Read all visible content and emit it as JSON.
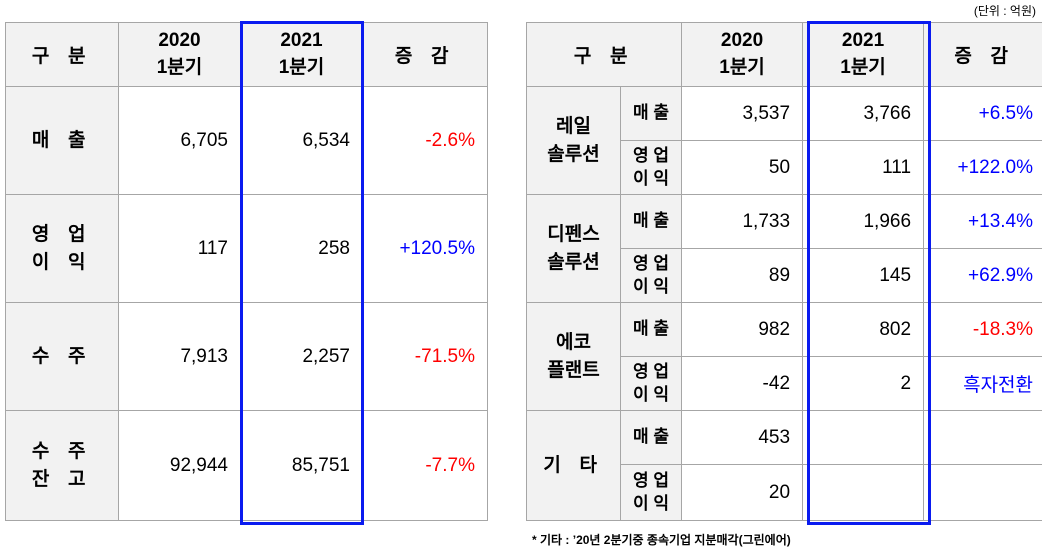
{
  "unit_label": "(단위 : 억원)",
  "left_table": {
    "headers": {
      "category": "구 분",
      "y2020_line1": "2020",
      "y2020_line2": "1분기",
      "y2021_line1": "2021",
      "y2021_line2": "1분기",
      "change": "증 감"
    },
    "rows": [
      {
        "label_line1": "매 출",
        "label_line2": "",
        "v2020": "6,705",
        "v2021": "6,534",
        "change": "-2.6%"
      },
      {
        "label_line1": "영 업",
        "label_line2": "이 익",
        "v2020": "117",
        "v2021": "258",
        "change": "+120.5%"
      },
      {
        "label_line1": "수 주",
        "label_line2": "",
        "v2020": "7,913",
        "v2021": "2,257",
        "change": "-71.5%"
      },
      {
        "label_line1": "수 주",
        "label_line2": "잔 고",
        "v2020": "92,944",
        "v2021": "85,751",
        "change": "-7.7%"
      }
    ]
  },
  "right_table": {
    "headers": {
      "category": "구 분",
      "y2020_line1": "2020",
      "y2020_line2": "1분기",
      "y2021_line1": "2021",
      "y2021_line2": "1분기",
      "change": "증 감"
    },
    "groups": [
      {
        "name_line1": "레일",
        "name_line2": "솔루션",
        "sales": {
          "label": "매 출",
          "v2020": "3,537",
          "v2021": "3,766",
          "change": "+6.5%"
        },
        "op": {
          "label_line1": "영 업",
          "label_line2": "이 익",
          "v2020": "50",
          "v2021": "111",
          "change": "+122.0%"
        }
      },
      {
        "name_line1": "디펜스",
        "name_line2": "솔루션",
        "sales": {
          "label": "매 출",
          "v2020": "1,733",
          "v2021": "1,966",
          "change": "+13.4%"
        },
        "op": {
          "label_line1": "영 업",
          "label_line2": "이 익",
          "v2020": "89",
          "v2021": "145",
          "change": "+62.9%"
        }
      },
      {
        "name_line1": "에코",
        "name_line2": "플랜트",
        "sales": {
          "label": "매 출",
          "v2020": "982",
          "v2021": "802",
          "change": "-18.3%"
        },
        "op": {
          "label_line1": "영 업",
          "label_line2": "이 익",
          "v2020": "-42",
          "v2021": "2",
          "change": "흑자전환"
        }
      },
      {
        "name_line1": "기 타",
        "name_line2": "",
        "sales": {
          "label": "매 출",
          "v2020": "453",
          "v2021": "",
          "change": ""
        },
        "op": {
          "label_line1": "영 업",
          "label_line2": "이 익",
          "v2020": "20",
          "v2021": "",
          "change": ""
        }
      }
    ]
  },
  "footnote": "* 기타 : ’20년 2분기중 종속기업 지분매각(그린에어)",
  "colors": {
    "negative": "#ff0000",
    "positive": "#0000ff",
    "highlight_border": "#0a1bf0",
    "header_bg": "#f2f2f2"
  }
}
